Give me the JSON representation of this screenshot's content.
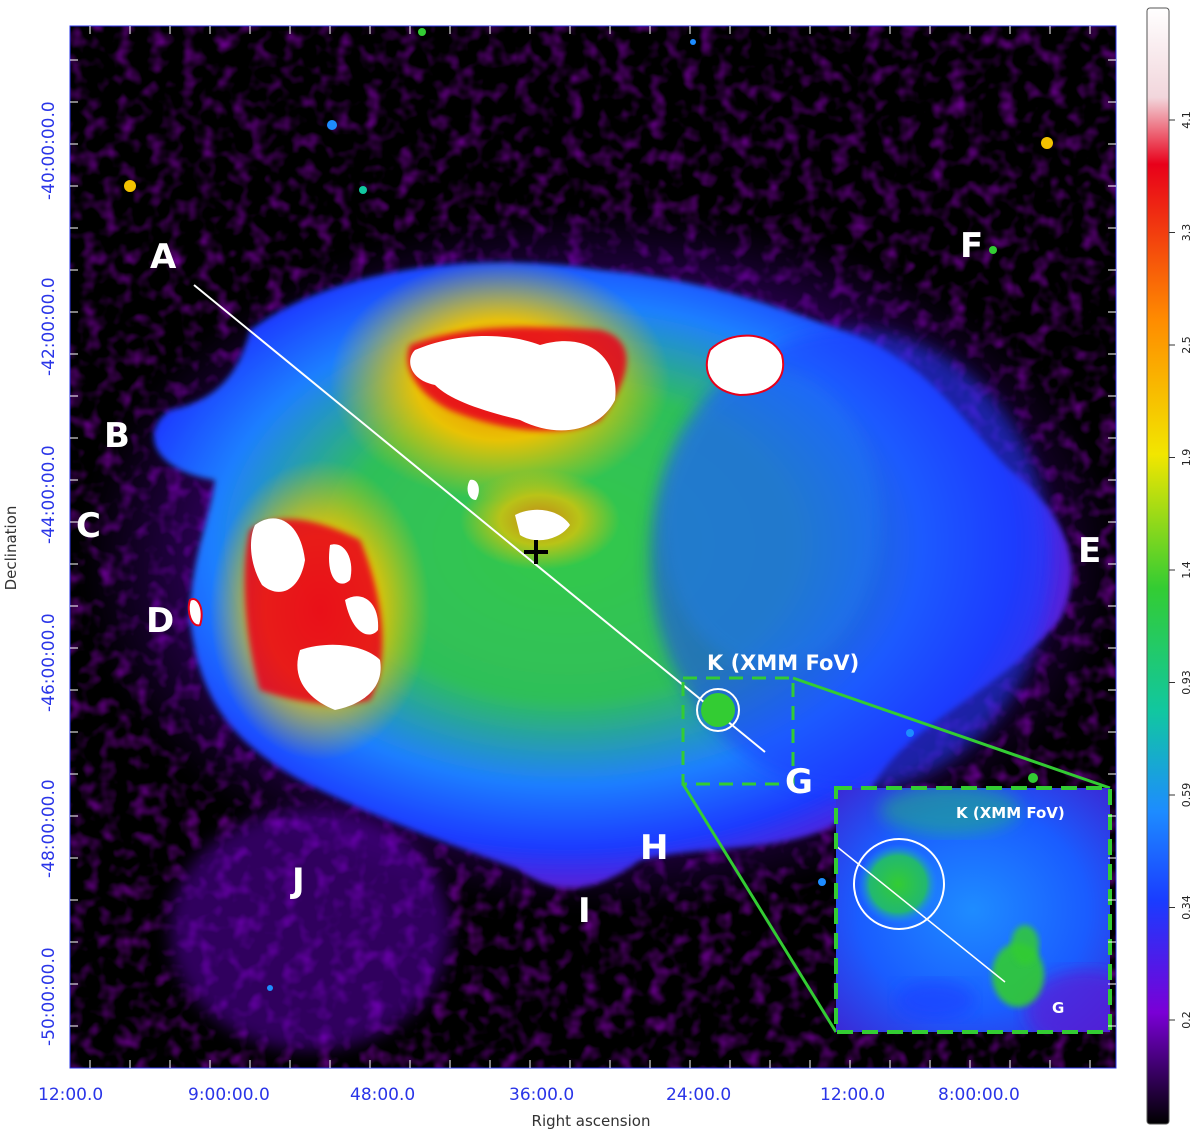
{
  "chart_data": {
    "type": "heatmap",
    "xlabel": "Right ascension",
    "ylabel": "Declination",
    "x_ticks": [
      "12:00.0",
      "9:00:00.0",
      "48:00.0",
      "36:00.0",
      "24:00.0",
      "12:00.0",
      "8:00:00.0"
    ],
    "y_ticks": [
      "-40:00:00.0",
      "-42:00:00.0",
      "-44:00:00.0",
      "-46:00:00.0",
      "-48:00:00.0",
      "-50:00:00.0"
    ],
    "colorbar_ticks": [
      "4.1",
      "3.3",
      "2.5",
      "1.9",
      "1.4",
      "0.93",
      "0.59",
      "0.34",
      "0.2"
    ],
    "colorbar_colors": [
      "#ffffff",
      "#e8001a",
      "#ff8c00",
      "#f2e600",
      "#33cc33",
      "#11c7a0",
      "#1d8cff",
      "#1a3cff",
      "#7a00d6",
      "#000000"
    ],
    "regions": [
      "A",
      "B",
      "C",
      "D",
      "E",
      "F",
      "G",
      "H",
      "I",
      "J"
    ],
    "inset_region": "K (XMM FoV)",
    "inset_sub_label": "G",
    "center_marker": "+"
  }
}
